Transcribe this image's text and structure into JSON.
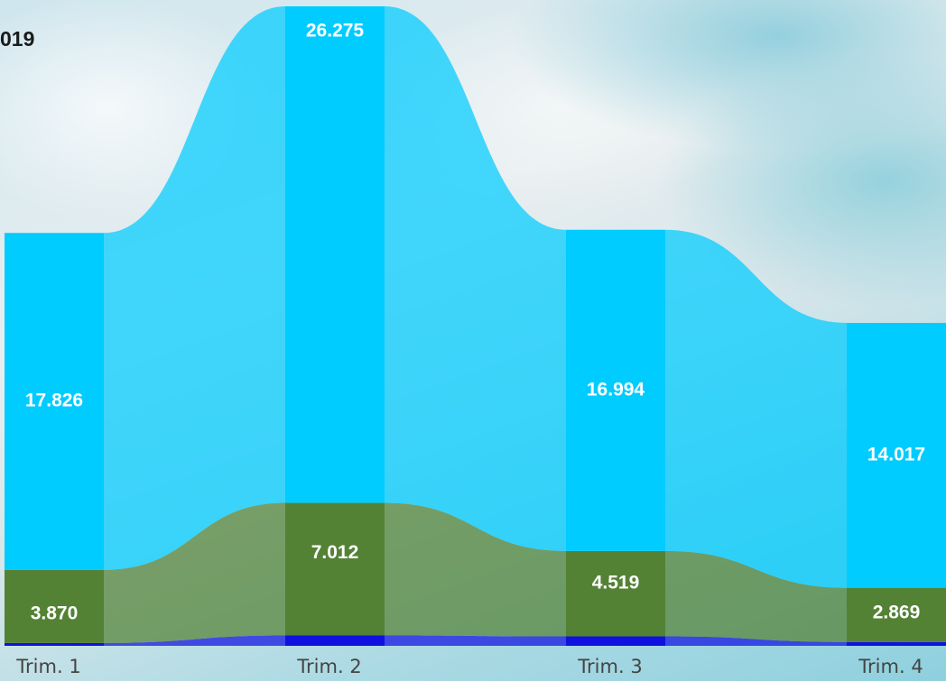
{
  "chart_data": {
    "type": "ribbon",
    "title": "019",
    "categories": [
      "Trim. 1",
      "Trim. 2",
      "Trim. 3",
      "Trim. 4"
    ],
    "series": [
      {
        "values": [
          0.15,
          0.55,
          0.5,
          0.2
        ],
        "color": "#1010e0"
      },
      {
        "values": [
          3.87,
          7.012,
          4.519,
          2.869
        ],
        "color": "#548235"
      },
      {
        "values": [
          17.826,
          26.275,
          16.994,
          14.017
        ],
        "color": "#00ccff"
      }
    ],
    "labels": [
      {
        "series": 1,
        "values": [
          "3.870",
          "7.012",
          "4.519",
          "2.869"
        ]
      },
      {
        "series": 2,
        "values": [
          "17.826",
          "26.275",
          "16.994",
          "14.017"
        ]
      }
    ],
    "legend": false,
    "grid": false
  }
}
